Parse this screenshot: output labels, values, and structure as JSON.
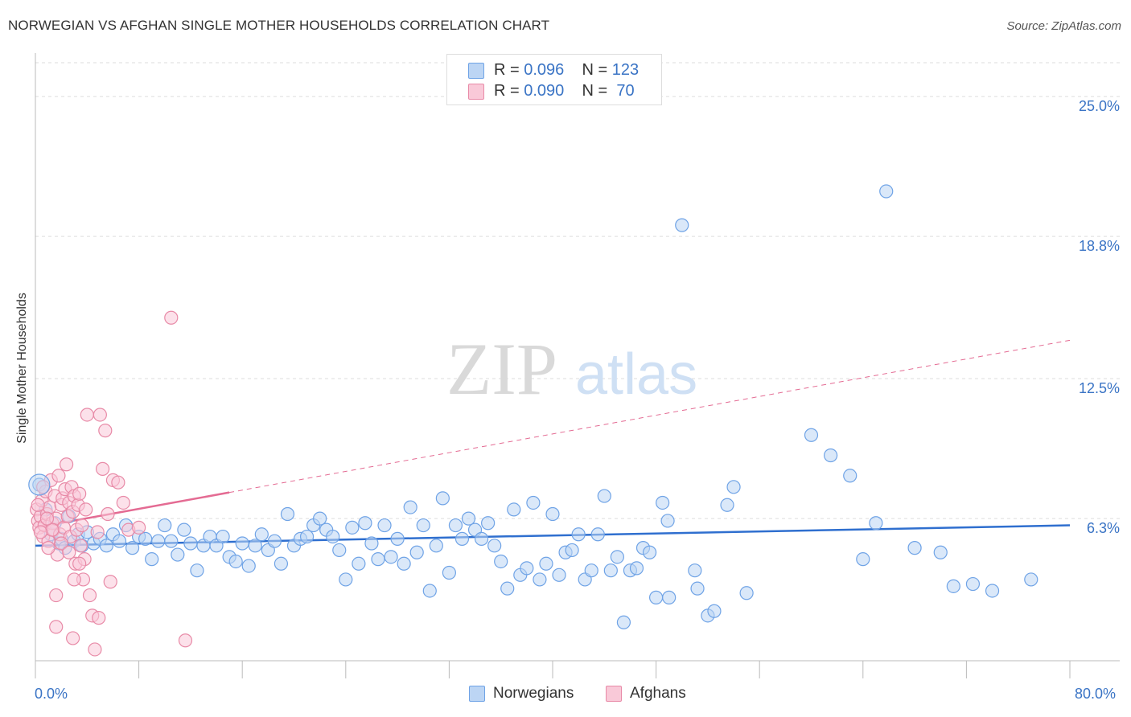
{
  "title": "NORWEGIAN VS AFGHAN SINGLE MOTHER HOUSEHOLDS CORRELATION CHART",
  "source": "Source: ZipAtlas.com",
  "watermark": {
    "zip": "ZIP",
    "atlas": "atlas"
  },
  "legend_stats": [
    {
      "r_label": "R =",
      "r_value": "0.096",
      "n_label": "N =",
      "n_value": "123",
      "color": "#a9c8f0"
    },
    {
      "r_label": "R =",
      "r_value": "0.090",
      "n_label": "N =",
      "n_value": "70",
      "color": "#f5b8cb"
    }
  ],
  "chart_data": {
    "type": "scatter",
    "title": "NORWEGIAN VS AFGHAN SINGLE MOTHER HOUSEHOLDS CORRELATION CHART",
    "xlabel": "",
    "ylabel": "Single Mother Households",
    "xlim": [
      0,
      80
    ],
    "ylim": [
      0,
      26.5
    ],
    "x_tick_labels": [
      "0.0%",
      "80.0%"
    ],
    "y_ticks": [
      6.3,
      12.5,
      18.8,
      25.0
    ],
    "y_tick_labels": [
      "6.3%",
      "12.5%",
      "18.8%",
      "25.0%"
    ],
    "grid": "horizontal dashed",
    "legend_position": "top-center and bottom",
    "series": [
      {
        "name": "Norwegians",
        "color": "#6fa3e6",
        "fill": "#bcd5f4",
        "trend": {
          "x": [
            0,
            80
          ],
          "y": [
            5.1,
            6.0
          ]
        },
        "points": [
          [
            0.3,
            7.8
          ],
          [
            0.8,
            6.7
          ],
          [
            1.2,
            5.6
          ],
          [
            1.5,
            6.1
          ],
          [
            1.8,
            5.2
          ],
          [
            2.0,
            5.4
          ],
          [
            2.3,
            5.0
          ],
          [
            2.6,
            6.4
          ],
          [
            3.0,
            5.3
          ],
          [
            3.3,
            5.6
          ],
          [
            3.6,
            5.1
          ],
          [
            4.0,
            5.7
          ],
          [
            4.5,
            5.2
          ],
          [
            5.0,
            5.4
          ],
          [
            5.5,
            5.1
          ],
          [
            6.0,
            5.6
          ],
          [
            6.5,
            5.3
          ],
          [
            7.0,
            6.0
          ],
          [
            7.5,
            5.0
          ],
          [
            8.0,
            5.5
          ],
          [
            8.5,
            5.4
          ],
          [
            9.0,
            4.5
          ],
          [
            9.5,
            5.3
          ],
          [
            10.0,
            6.0
          ],
          [
            10.5,
            5.3
          ],
          [
            11.0,
            4.7
          ],
          [
            11.5,
            5.8
          ],
          [
            12.0,
            5.2
          ],
          [
            12.5,
            4.0
          ],
          [
            13.0,
            5.1
          ],
          [
            13.5,
            5.5
          ],
          [
            14.0,
            5.1
          ],
          [
            14.5,
            5.5
          ],
          [
            15.0,
            4.6
          ],
          [
            15.5,
            4.4
          ],
          [
            16.0,
            5.2
          ],
          [
            16.5,
            4.2
          ],
          [
            17.0,
            5.1
          ],
          [
            17.5,
            5.6
          ],
          [
            18.0,
            4.9
          ],
          [
            18.5,
            5.3
          ],
          [
            19.0,
            4.3
          ],
          [
            19.5,
            6.5
          ],
          [
            20.0,
            5.1
          ],
          [
            20.5,
            5.4
          ],
          [
            21.0,
            5.5
          ],
          [
            21.5,
            6.0
          ],
          [
            22.0,
            6.3
          ],
          [
            22.5,
            5.8
          ],
          [
            23.0,
            5.5
          ],
          [
            23.5,
            4.9
          ],
          [
            24.0,
            3.6
          ],
          [
            24.5,
            5.9
          ],
          [
            25.0,
            4.3
          ],
          [
            25.5,
            6.1
          ],
          [
            26.0,
            5.2
          ],
          [
            26.5,
            4.5
          ],
          [
            27.0,
            6.0
          ],
          [
            27.5,
            4.6
          ],
          [
            28.0,
            5.4
          ],
          [
            28.5,
            4.3
          ],
          [
            29.0,
            6.8
          ],
          [
            29.5,
            4.8
          ],
          [
            30.0,
            6.0
          ],
          [
            30.5,
            3.1
          ],
          [
            31.0,
            5.1
          ],
          [
            31.5,
            7.2
          ],
          [
            32.0,
            3.9
          ],
          [
            32.5,
            6.0
          ],
          [
            33.0,
            5.4
          ],
          [
            33.5,
            6.3
          ],
          [
            34.0,
            5.8
          ],
          [
            34.5,
            5.4
          ],
          [
            35.0,
            6.1
          ],
          [
            35.5,
            5.1
          ],
          [
            36.0,
            4.4
          ],
          [
            36.5,
            3.2
          ],
          [
            37.0,
            6.7
          ],
          [
            37.5,
            3.8
          ],
          [
            38.0,
            4.1
          ],
          [
            38.5,
            7.0
          ],
          [
            39.0,
            3.6
          ],
          [
            39.5,
            4.3
          ],
          [
            40.0,
            6.5
          ],
          [
            40.5,
            3.8
          ],
          [
            41.0,
            4.8
          ],
          [
            41.5,
            4.9
          ],
          [
            42.0,
            5.6
          ],
          [
            42.5,
            3.6
          ],
          [
            43.0,
            4.0
          ],
          [
            43.5,
            5.6
          ],
          [
            44.0,
            7.3
          ],
          [
            44.5,
            4.0
          ],
          [
            45.0,
            4.6
          ],
          [
            45.5,
            1.7
          ],
          [
            46.0,
            4.0
          ],
          [
            46.5,
            4.1
          ],
          [
            47.0,
            5.0
          ],
          [
            47.5,
            4.8
          ],
          [
            48.0,
            2.8
          ],
          [
            48.5,
            7.0
          ],
          [
            48.9,
            6.2
          ],
          [
            49.0,
            2.8
          ],
          [
            50.0,
            19.3
          ],
          [
            51.0,
            4.0
          ],
          [
            51.2,
            3.2
          ],
          [
            52.0,
            2.0
          ],
          [
            52.5,
            2.2
          ],
          [
            53.5,
            6.9
          ],
          [
            54.0,
            7.7
          ],
          [
            55.0,
            3.0
          ],
          [
            60.0,
            10.0
          ],
          [
            61.5,
            9.1
          ],
          [
            63.0,
            8.2
          ],
          [
            64.0,
            4.5
          ],
          [
            65.0,
            6.1
          ],
          [
            65.8,
            20.8
          ],
          [
            71.0,
            3.3
          ],
          [
            77.0,
            3.6
          ],
          [
            72.5,
            3.4
          ],
          [
            70.0,
            4.8
          ],
          [
            68.0,
            5.0
          ],
          [
            74.0,
            3.1
          ]
        ]
      },
      {
        "name": "Afghans",
        "color": "#e88aa7",
        "fill": "#f9c9d8",
        "trend": {
          "x": [
            0,
            80
          ],
          "y": [
            5.9,
            14.2
          ]
        },
        "points": [
          [
            0.1,
            6.7
          ],
          [
            0.2,
            6.2
          ],
          [
            0.3,
            5.9
          ],
          [
            0.4,
            6.4
          ],
          [
            0.5,
            7.1
          ],
          [
            0.6,
            5.5
          ],
          [
            0.7,
            6.0
          ],
          [
            0.8,
            7.5
          ],
          [
            0.9,
            6.5
          ],
          [
            1.0,
            5.3
          ],
          [
            1.1,
            6.8
          ],
          [
            1.2,
            8.0
          ],
          [
            1.3,
            6.1
          ],
          [
            1.4,
            5.8
          ],
          [
            1.5,
            7.3
          ],
          [
            1.6,
            6.3
          ],
          [
            1.7,
            4.7
          ],
          [
            1.8,
            8.2
          ],
          [
            1.9,
            5.6
          ],
          [
            2.0,
            6.9
          ],
          [
            2.1,
            7.2
          ],
          [
            2.2,
            5.9
          ],
          [
            2.3,
            7.6
          ],
          [
            2.4,
            8.7
          ],
          [
            2.5,
            6.4
          ],
          [
            2.6,
            7.0
          ],
          [
            2.7,
            5.5
          ],
          [
            2.8,
            7.7
          ],
          [
            2.9,
            6.6
          ],
          [
            3.0,
            7.3
          ],
          [
            3.1,
            4.3
          ],
          [
            3.2,
            5.8
          ],
          [
            3.3,
            6.9
          ],
          [
            3.4,
            7.4
          ],
          [
            3.5,
            5.1
          ],
          [
            3.6,
            6.0
          ],
          [
            3.7,
            3.6
          ],
          [
            3.8,
            4.5
          ],
          [
            3.9,
            6.7
          ],
          [
            4.0,
            10.9
          ],
          [
            4.2,
            2.9
          ],
          [
            4.4,
            2.0
          ],
          [
            4.6,
            0.5
          ],
          [
            4.8,
            5.7
          ],
          [
            5.0,
            10.9
          ],
          [
            5.2,
            8.5
          ],
          [
            5.4,
            10.2
          ],
          [
            5.6,
            6.5
          ],
          [
            5.8,
            3.5
          ],
          [
            6.0,
            8.0
          ],
          [
            6.4,
            7.9
          ],
          [
            6.8,
            7.0
          ],
          [
            7.2,
            5.8
          ],
          [
            8.0,
            5.9
          ],
          [
            1.6,
            1.5
          ],
          [
            1.6,
            2.9
          ],
          [
            2.9,
            1.0
          ],
          [
            3.4,
            4.3
          ],
          [
            4.9,
            1.9
          ],
          [
            3.0,
            3.6
          ],
          [
            10.5,
            15.2
          ],
          [
            11.6,
            0.9
          ],
          [
            1.0,
            5.0
          ],
          [
            0.6,
            7.7
          ],
          [
            2.0,
            5.2
          ],
          [
            2.6,
            4.8
          ],
          [
            1.3,
            5.8
          ],
          [
            0.9,
            6.3
          ],
          [
            0.4,
            5.7
          ],
          [
            0.2,
            6.9
          ]
        ]
      }
    ]
  }
}
